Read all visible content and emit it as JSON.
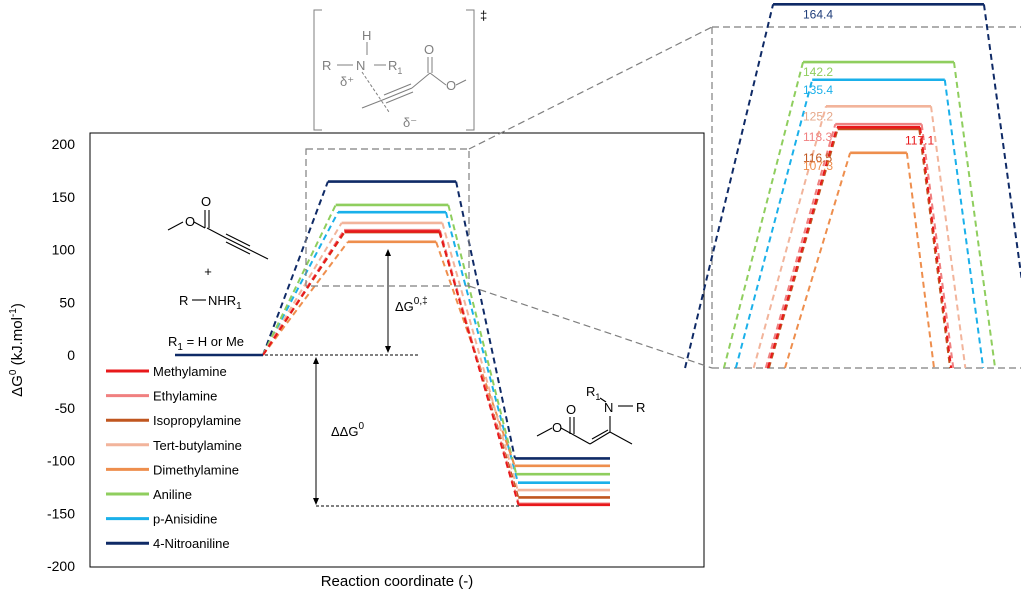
{
  "chart_data": {
    "type": "line",
    "title": "",
    "xlabel": "Reaction coordinate (-)",
    "ylabel_main": "ΔG",
    "ylabel_sup": "0",
    "ylabel_unit": " (kJ.mol",
    "ylabel_unit_sup": "-1",
    "ylabel_end": ")",
    "ylim": [
      -200,
      200
    ],
    "yticks": [
      "200",
      "150",
      "100",
      "50",
      "0",
      "-50",
      "-100",
      "-150",
      "-200"
    ],
    "legend_position": "bottom-left",
    "series": [
      {
        "name": "Methylamine",
        "color": "#e8191b",
        "ts": 117.1,
        "product": -142
      },
      {
        "name": "Ethylamine",
        "color": "#f08080",
        "ts": 118.3,
        "product": -141
      },
      {
        "name": "Isopropylamine",
        "color": "#c0561f",
        "ts": 116.5,
        "product": -135
      },
      {
        "name": "Tert-butylamine",
        "color": "#f2b49b",
        "ts": 125.2,
        "product": -128
      },
      {
        "name": "Dimethylamine",
        "color": "#ee8e4d",
        "ts": 107.3,
        "product": -105
      },
      {
        "name": "Aniline",
        "color": "#8fce5e",
        "ts": 142.2,
        "product": -113
      },
      {
        "name": "p-Anisidine",
        "color": "#1ab0ea",
        "ts": 135.4,
        "product": -121
      },
      {
        "name": "4-Nitroaniline",
        "color": "#0f2a66",
        "ts": 164.4,
        "product": -98
      }
    ],
    "zoom_labels": [
      {
        "text": "164.4",
        "color": "#1f3d7a"
      },
      {
        "text": "142.2",
        "color": "#8fce5e"
      },
      {
        "text": "135.4",
        "color": "#1ab0ea"
      },
      {
        "text": "125.2",
        "color": "#e6a88a"
      },
      {
        "text": "118.3",
        "color": "#f08080"
      },
      {
        "text": "117.1",
        "color": "#e8191b"
      },
      {
        "text": "116.5",
        "color": "#c0561f"
      },
      {
        "text": "107.3",
        "color": "#ee8e4d"
      }
    ],
    "annotations": {
      "dg_act": "ΔG",
      "dg_act_sup": "0,‡",
      "ddg": "ΔΔG",
      "ddg_sup": "0",
      "reactant_plus": "+",
      "amine_r": "R",
      "amine_nhr": "NHR",
      "amine_sub": "1",
      "r1_a": "R",
      "r1_sub": "1",
      "r1_b": " = H or Me",
      "ts_R": "R",
      "ts_N": "N",
      "ts_H": "H",
      "ts_R1": "R",
      "ts_R1_sub": "1",
      "ts_delta_plus": "δ⁺",
      "ts_delta_minus": "δ⁻",
      "ts_dagger": "‡",
      "prod_R1": "R",
      "prod_R1_sub": "1",
      "prod_N": "N",
      "prod_R": "R"
    }
  }
}
